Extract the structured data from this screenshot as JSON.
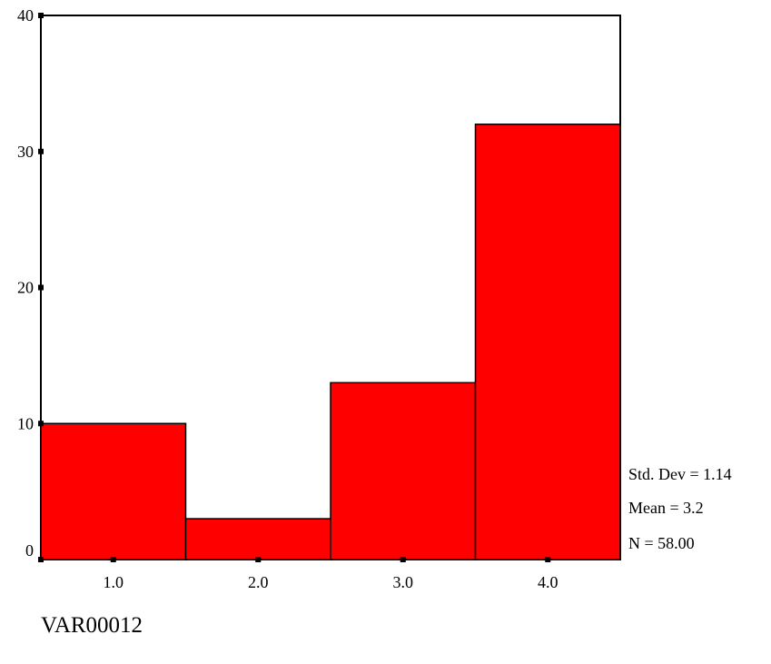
{
  "chart_data": {
    "type": "bar",
    "categories": [
      "1.0",
      "2.0",
      "3.0",
      "4.0"
    ],
    "values": [
      10,
      3,
      13,
      32
    ],
    "title": "",
    "xlabel": "VAR00012",
    "ylabel": "",
    "ylim": [
      0,
      40
    ],
    "yticks": [
      "0",
      "10",
      "20",
      "30",
      "40"
    ],
    "grid": false,
    "bar_color": "#ff0000",
    "stats": [
      {
        "label": "Std. Dev = 1.14"
      },
      {
        "label": "Mean = 3.2"
      },
      {
        "label": "N = 58.00"
      }
    ]
  }
}
